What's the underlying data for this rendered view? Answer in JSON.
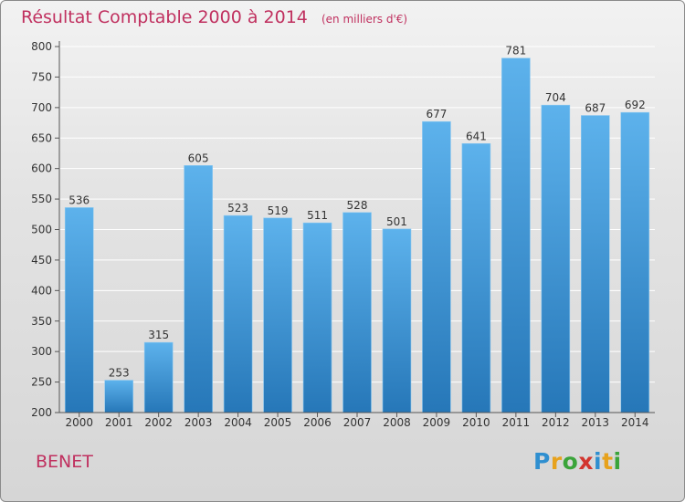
{
  "chart_data": {
    "type": "bar",
    "title": "Résultat Comptable 2000 à 2014",
    "unit": "(en milliers d'€)",
    "xlabel": "",
    "ylabel": "",
    "categories": [
      "2000",
      "2001",
      "2002",
      "2003",
      "2004",
      "2005",
      "2006",
      "2007",
      "2008",
      "2009",
      "2010",
      "2011",
      "2012",
      "2013",
      "2014"
    ],
    "values": [
      536,
      253,
      315,
      605,
      523,
      519,
      511,
      528,
      501,
      677,
      641,
      781,
      704,
      687,
      692
    ],
    "ylim": [
      200,
      800
    ],
    "yticks": [
      200,
      250,
      300,
      350,
      400,
      450,
      500,
      550,
      600,
      650,
      700,
      750,
      800
    ],
    "grid": true,
    "colors": {
      "bar_top": "#5db2ec",
      "bar_bottom": "#2677b8",
      "title": "#c0305f",
      "grid": "#ffffff"
    }
  },
  "footer": {
    "commune": "BENET",
    "logo": "Proxiti"
  }
}
